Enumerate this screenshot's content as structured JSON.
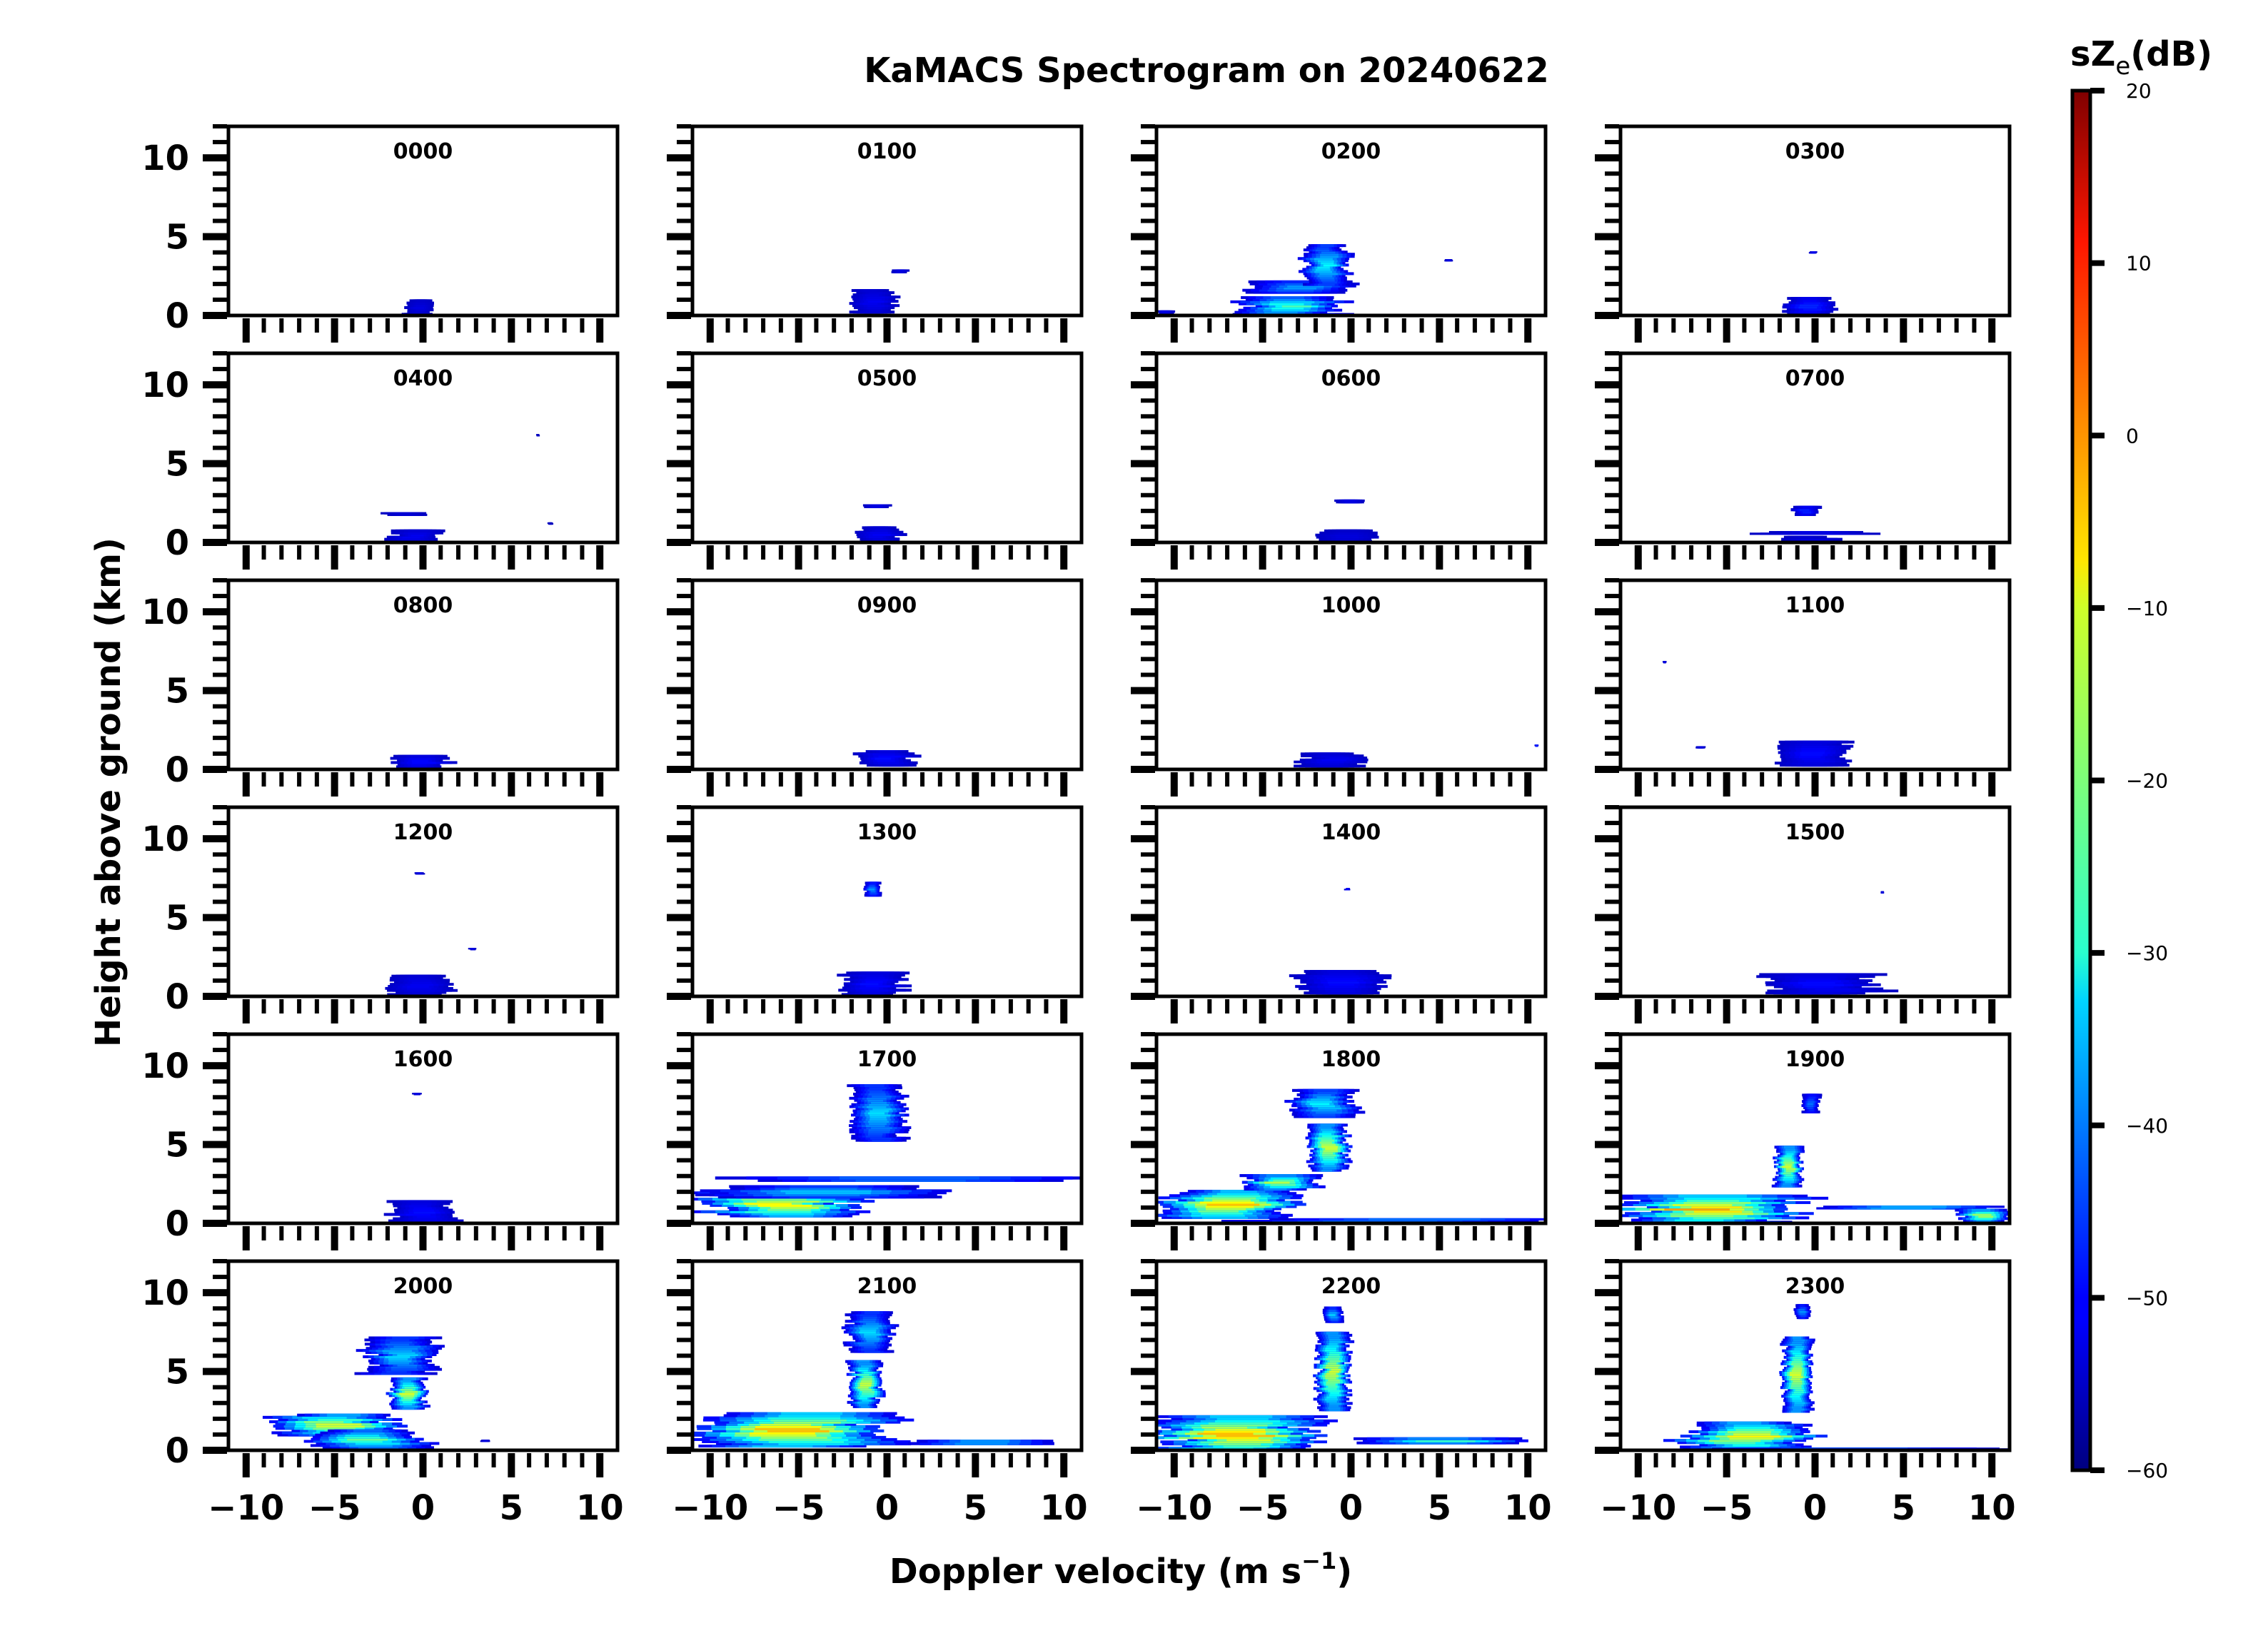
{
  "chart_data": {
    "type": "heatmap",
    "title": "KaMACS Spectrogram on 20240622",
    "xlabel": "Doppler velocity (m s⁻¹)",
    "xlabel_main": "Doppler velocity (m s",
    "xlabel_sup": "−1",
    "xlabel_close": ")",
    "ylabel": "Height above ground (km)",
    "xlim": [
      -11,
      11
    ],
    "ylim": [
      0,
      12
    ],
    "xticks": [
      -10,
      -5,
      0,
      5,
      10
    ],
    "xtick_labels": [
      "−10",
      "−5",
      "0",
      "5",
      "10"
    ],
    "yticks": [
      0,
      5,
      10
    ],
    "ytick_labels": [
      "0",
      "5",
      "10"
    ],
    "colorbar": {
      "label_main": "sZ",
      "label_sub": "e",
      "label_unit": "(dB)",
      "range": [
        -60,
        20
      ],
      "ticks": [
        20,
        10,
        0,
        -10,
        -20,
        -30,
        -40,
        -50,
        -60
      ],
      "tick_labels": [
        "20",
        "10",
        "0",
        "−10",
        "−20",
        "−30",
        "−40",
        "−50",
        "−60"
      ],
      "colormap": "jet"
    },
    "grid": false,
    "panels": [
      {
        "label": "0000",
        "blobs": [
          {
            "v": -0.2,
            "h": 0.5,
            "w": 1.5,
            "d": 1.0,
            "z": -52
          }
        ]
      },
      {
        "label": "0100",
        "blobs": [
          {
            "v": -0.8,
            "h": 0.9,
            "w": 2.4,
            "d": 1.5,
            "z": -50
          },
          {
            "v": 0.7,
            "h": 2.8,
            "w": 1.0,
            "d": 0.2,
            "z": -50
          }
        ]
      },
      {
        "label": "0200",
        "blobs": [
          {
            "v": -3.5,
            "h": 0.6,
            "w": 6,
            "d": 1.2,
            "z": -18
          },
          {
            "v": -3.0,
            "h": 1.8,
            "w": 6,
            "d": 0.8,
            "z": -32
          },
          {
            "v": -1.4,
            "h": 3.2,
            "w": 2.5,
            "d": 2.6,
            "z": -25
          },
          {
            "v": 5.5,
            "h": 3.5,
            "w": 0.5,
            "d": 0.1,
            "z": -50
          },
          {
            "v": -10.5,
            "h": 0.2,
            "w": 1.0,
            "d": 0.2,
            "z": -50
          }
        ]
      },
      {
        "label": "0300",
        "blobs": [
          {
            "v": -0.2,
            "h": 0.6,
            "w": 2.5,
            "d": 1.1,
            "z": -45
          },
          {
            "v": -0.1,
            "h": 4.0,
            "w": 0.4,
            "d": 0.1,
            "z": -48
          }
        ]
      },
      {
        "label": "0400",
        "blobs": [
          {
            "v": -0.5,
            "h": 0.4,
            "w": 2.6,
            "d": 0.8,
            "z": -50
          },
          {
            "v": -1.0,
            "h": 1.8,
            "w": 2.4,
            "d": 0.2,
            "z": -52
          },
          {
            "v": 6.5,
            "h": 6.8,
            "w": 0.2,
            "d": 0.1,
            "z": -55
          },
          {
            "v": 7.2,
            "h": 1.2,
            "w": 0.3,
            "d": 0.1,
            "z": -55
          }
        ]
      },
      {
        "label": "0500",
        "blobs": [
          {
            "v": -0.5,
            "h": 0.5,
            "w": 2.4,
            "d": 1.0,
            "z": -50
          },
          {
            "v": -0.6,
            "h": 2.3,
            "w": 1.4,
            "d": 0.2,
            "z": -50
          }
        ]
      },
      {
        "label": "0600",
        "blobs": [
          {
            "v": -0.3,
            "h": 0.4,
            "w": 3.6,
            "d": 0.8,
            "z": -52
          },
          {
            "v": 0.0,
            "h": 2.6,
            "w": 1.6,
            "d": 0.2,
            "z": -50
          }
        ]
      },
      {
        "label": "0700",
        "blobs": [
          {
            "v": -0.5,
            "h": 2.0,
            "w": 1.4,
            "d": 0.6,
            "z": -45
          },
          {
            "v": -0.5,
            "h": 0.6,
            "w": 7.0,
            "d": 0.2,
            "z": -50
          },
          {
            "v": -0.3,
            "h": 0.2,
            "w": 3.0,
            "d": 0.4,
            "z": -52
          }
        ]
      },
      {
        "label": "0800",
        "blobs": [
          {
            "v": 0.0,
            "h": 0.5,
            "w": 3.2,
            "d": 0.8,
            "z": -48
          }
        ]
      },
      {
        "label": "0900",
        "blobs": [
          {
            "v": 0.0,
            "h": 0.7,
            "w": 3.0,
            "d": 1.0,
            "z": -48
          }
        ]
      },
      {
        "label": "1000",
        "blobs": [
          {
            "v": -1.0,
            "h": 0.6,
            "w": 4.0,
            "d": 0.9,
            "z": -50
          },
          {
            "v": 10.5,
            "h": 1.5,
            "w": 0.2,
            "d": 0.1,
            "z": -40
          }
        ]
      },
      {
        "label": "1100",
        "blobs": [
          {
            "v": -0.2,
            "h": 1.0,
            "w": 3.6,
            "d": 1.6,
            "z": -48
          },
          {
            "v": -8.5,
            "h": 6.8,
            "w": 0.2,
            "d": 0.1,
            "z": -50
          },
          {
            "v": -6.5,
            "h": 1.4,
            "w": 0.5,
            "d": 0.1,
            "z": -50
          }
        ]
      },
      {
        "label": "1200",
        "blobs": [
          {
            "v": -0.3,
            "h": 0.7,
            "w": 3.6,
            "d": 1.3,
            "z": -50
          },
          {
            "v": -0.2,
            "h": 7.8,
            "w": 0.5,
            "d": 0.1,
            "z": -50
          },
          {
            "v": 2.8,
            "h": 3.0,
            "w": 0.4,
            "d": 0.1,
            "z": -50
          }
        ]
      },
      {
        "label": "1300",
        "blobs": [
          {
            "v": -0.8,
            "h": 0.8,
            "w": 3.6,
            "d": 1.5,
            "z": -48
          },
          {
            "v": -0.8,
            "h": 6.8,
            "w": 0.9,
            "d": 0.9,
            "z": -35
          }
        ]
      },
      {
        "label": "1400",
        "blobs": [
          {
            "v": -0.8,
            "h": 0.9,
            "w": 5.0,
            "d": 1.5,
            "z": -48
          },
          {
            "v": -0.2,
            "h": 6.8,
            "w": 0.3,
            "d": 0.1,
            "z": -45
          }
        ]
      },
      {
        "label": "1500",
        "blobs": [
          {
            "v": 0.5,
            "h": 0.8,
            "w": 6.5,
            "d": 1.3,
            "z": -48
          },
          {
            "v": 3.8,
            "h": 6.6,
            "w": 0.2,
            "d": 0.1,
            "z": -50
          }
        ]
      },
      {
        "label": "1600",
        "blobs": [
          {
            "v": 0.0,
            "h": 0.7,
            "w": 3.6,
            "d": 1.5,
            "z": -48
          },
          {
            "v": -0.3,
            "h": 8.2,
            "w": 0.5,
            "d": 0.1,
            "z": -50
          }
        ]
      },
      {
        "label": "1700",
        "blobs": [
          {
            "v": -6.0,
            "h": 1.2,
            "w": 9.0,
            "d": 1.6,
            "z": 2
          },
          {
            "v": -4.0,
            "h": 2.0,
            "w": 12.0,
            "d": 0.8,
            "z": -28
          },
          {
            "v": 0.0,
            "h": 2.8,
            "w": 21.0,
            "d": 0.3,
            "z": -32
          },
          {
            "v": -0.5,
            "h": 7.0,
            "w": 3.0,
            "d": 3.6,
            "z": -28
          }
        ]
      },
      {
        "label": "1800",
        "blobs": [
          {
            "v": -7.0,
            "h": 1.2,
            "w": 7.5,
            "d": 1.8,
            "z": 5
          },
          {
            "v": -4.0,
            "h": 2.6,
            "w": 4.0,
            "d": 1.0,
            "z": -8
          },
          {
            "v": -1.3,
            "h": 4.8,
            "w": 2.2,
            "d": 3.0,
            "z": -5
          },
          {
            "v": -1.5,
            "h": 7.6,
            "w": 3.5,
            "d": 1.8,
            "z": -25
          },
          {
            "v": 3.0,
            "h": 0.2,
            "w": 16.0,
            "d": 0.2,
            "z": -30
          }
        ]
      },
      {
        "label": "1900",
        "blobs": [
          {
            "v": -6.0,
            "h": 0.9,
            "w": 10.0,
            "d": 1.8,
            "z": 8
          },
          {
            "v": -1.5,
            "h": 3.6,
            "w": 1.5,
            "d": 2.6,
            "z": -5
          },
          {
            "v": -0.2,
            "h": 7.6,
            "w": 1.0,
            "d": 1.2,
            "z": -38
          },
          {
            "v": 5.5,
            "h": 1.0,
            "w": 11.0,
            "d": 0.2,
            "z": -22
          },
          {
            "v": 9.5,
            "h": 0.5,
            "w": 2.5,
            "d": 0.8,
            "z": -5
          }
        ]
      },
      {
        "label": "2000",
        "blobs": [
          {
            "v": -5.0,
            "h": 1.6,
            "w": 7.0,
            "d": 1.4,
            "z": -2
          },
          {
            "v": -3.0,
            "h": 0.7,
            "w": 6.0,
            "d": 1.2,
            "z": -15
          },
          {
            "v": -0.8,
            "h": 3.6,
            "w": 2.0,
            "d": 2.0,
            "z": -5
          },
          {
            "v": -1.2,
            "h": 6.0,
            "w": 4.0,
            "d": 2.4,
            "z": -28
          },
          {
            "v": 3.5,
            "h": 0.6,
            "w": 0.5,
            "d": 0.1,
            "z": -50
          }
        ]
      },
      {
        "label": "2100",
        "blobs": [
          {
            "v": -5.0,
            "h": 1.3,
            "w": 10.5,
            "d": 2.2,
            "z": 8
          },
          {
            "v": -1.2,
            "h": 4.2,
            "w": 1.8,
            "d": 3.0,
            "z": -5
          },
          {
            "v": -1.0,
            "h": 7.5,
            "w": 2.6,
            "d": 2.6,
            "z": -28
          },
          {
            "v": 6.0,
            "h": 0.5,
            "w": 10.0,
            "d": 0.3,
            "z": -25
          }
        ]
      },
      {
        "label": "2200",
        "blobs": [
          {
            "v": -6.5,
            "h": 1.0,
            "w": 9.0,
            "d": 2.4,
            "z": 8
          },
          {
            "v": -1.0,
            "h": 5.0,
            "w": 1.8,
            "d": 5.0,
            "z": -5
          },
          {
            "v": -1.0,
            "h": 8.6,
            "w": 1.0,
            "d": 1.0,
            "z": -30
          },
          {
            "v": 5.0,
            "h": 0.6,
            "w": 12.0,
            "d": 0.4,
            "z": -20
          }
        ]
      },
      {
        "label": "2300",
        "blobs": [
          {
            "v": -4.0,
            "h": 0.9,
            "w": 7.0,
            "d": 1.8,
            "z": 0
          },
          {
            "v": -1.0,
            "h": 4.8,
            "w": 1.6,
            "d": 4.8,
            "z": -5
          },
          {
            "v": -0.7,
            "h": 8.8,
            "w": 0.8,
            "d": 0.9,
            "z": -35
          },
          {
            "v": 2.0,
            "h": 0.1,
            "w": 16.0,
            "d": 0.1,
            "z": -35
          }
        ]
      }
    ]
  }
}
